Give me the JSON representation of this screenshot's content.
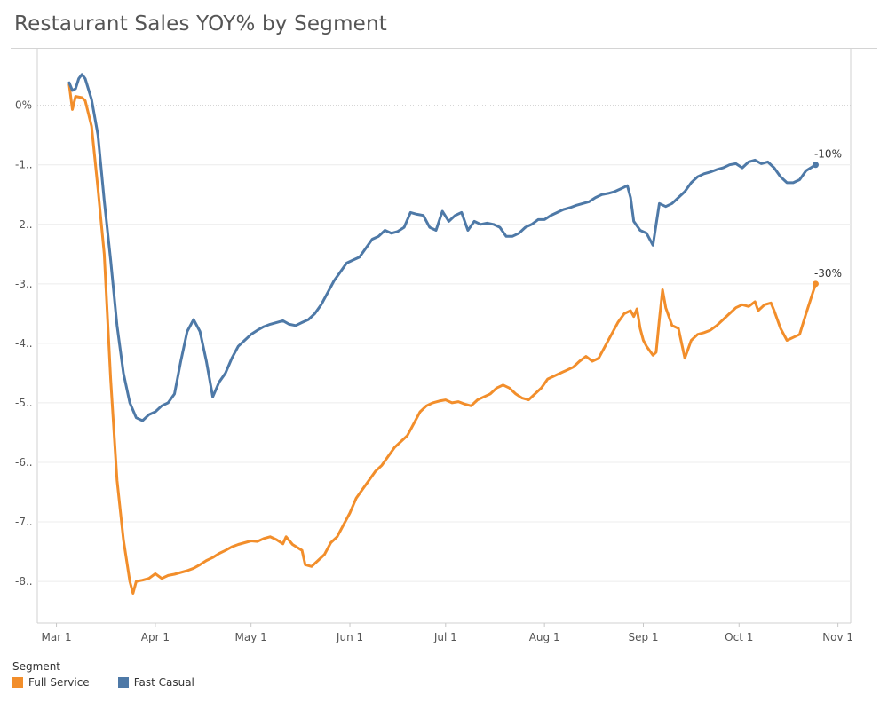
{
  "title": "Restaurant Sales YOY% by Segment",
  "legend": {
    "title": "Segment",
    "items": [
      {
        "label": "Full Service",
        "color": "#f28e2b"
      },
      {
        "label": "Fast Casual",
        "color": "#4e79a7"
      }
    ]
  },
  "chart_data": {
    "type": "line",
    "title": "Restaurant Sales YOY% by Segment",
    "xlabel": "",
    "ylabel": "",
    "x_unit": "date (2020)",
    "xlim": [
      "2020-02-24",
      "2020-11-05"
    ],
    "ylim": [
      -8.7,
      0.95
    ],
    "x_ticks": [
      {
        "date": "2020-03-01",
        "label": "Mar 1"
      },
      {
        "date": "2020-04-01",
        "label": "Apr 1"
      },
      {
        "date": "2020-05-01",
        "label": "May 1"
      },
      {
        "date": "2020-06-01",
        "label": "Jun 1"
      },
      {
        "date": "2020-07-01",
        "label": "Jul 1"
      },
      {
        "date": "2020-08-01",
        "label": "Aug 1"
      },
      {
        "date": "2020-09-01",
        "label": "Sep 1"
      },
      {
        "date": "2020-10-01",
        "label": "Oct 1"
      },
      {
        "date": "2020-11-01",
        "label": "Nov 1"
      }
    ],
    "y_ticks": [
      {
        "value": 0,
        "label": "0%"
      },
      {
        "value": -1,
        "label": "-1.."
      },
      {
        "value": -2,
        "label": "-2.."
      },
      {
        "value": -3,
        "label": "-3.."
      },
      {
        "value": -4,
        "label": "-4.."
      },
      {
        "value": -5,
        "label": "-5.."
      },
      {
        "value": -6,
        "label": "-6.."
      },
      {
        "value": -7,
        "label": "-7.."
      },
      {
        "value": -8,
        "label": "-8.."
      }
    ],
    "grid": true,
    "legend_position": "bottom-left",
    "series": [
      {
        "name": "Full Service",
        "color": "#f28e2b",
        "end_label": "-30%",
        "points": [
          [
            "2020-03-05",
            0.35
          ],
          [
            "2020-03-06",
            -0.07
          ],
          [
            "2020-03-07",
            0.15
          ],
          [
            "2020-03-09",
            0.13
          ],
          [
            "2020-03-10",
            0.08
          ],
          [
            "2020-03-12",
            -0.35
          ],
          [
            "2020-03-14",
            -1.4
          ],
          [
            "2020-03-16",
            -2.5
          ],
          [
            "2020-03-18",
            -4.6
          ],
          [
            "2020-03-20",
            -6.3
          ],
          [
            "2020-03-22",
            -7.3
          ],
          [
            "2020-03-24",
            -8.0
          ],
          [
            "2020-03-25",
            -8.2
          ],
          [
            "2020-03-26",
            -8.0
          ],
          [
            "2020-03-28",
            -7.98
          ],
          [
            "2020-03-30",
            -7.95
          ],
          [
            "2020-04-01",
            -7.87
          ],
          [
            "2020-04-03",
            -7.95
          ],
          [
            "2020-04-05",
            -7.9
          ],
          [
            "2020-04-07",
            -7.88
          ],
          [
            "2020-04-09",
            -7.85
          ],
          [
            "2020-04-11",
            -7.82
          ],
          [
            "2020-04-13",
            -7.78
          ],
          [
            "2020-04-15",
            -7.72
          ],
          [
            "2020-04-17",
            -7.65
          ],
          [
            "2020-04-19",
            -7.6
          ],
          [
            "2020-04-21",
            -7.53
          ],
          [
            "2020-04-23",
            -7.48
          ],
          [
            "2020-04-25",
            -7.42
          ],
          [
            "2020-04-27",
            -7.38
          ],
          [
            "2020-04-29",
            -7.35
          ],
          [
            "2020-05-01",
            -7.32
          ],
          [
            "2020-05-03",
            -7.33
          ],
          [
            "2020-05-05",
            -7.28
          ],
          [
            "2020-05-07",
            -7.25
          ],
          [
            "2020-05-09",
            -7.3
          ],
          [
            "2020-05-11",
            -7.37
          ],
          [
            "2020-05-12",
            -7.25
          ],
          [
            "2020-05-14",
            -7.38
          ],
          [
            "2020-05-17",
            -7.48
          ],
          [
            "2020-05-18",
            -7.72
          ],
          [
            "2020-05-20",
            -7.75
          ],
          [
            "2020-05-22",
            -7.65
          ],
          [
            "2020-05-24",
            -7.55
          ],
          [
            "2020-05-26",
            -7.35
          ],
          [
            "2020-05-28",
            -7.25
          ],
          [
            "2020-05-30",
            -7.05
          ],
          [
            "2020-06-01",
            -6.85
          ],
          [
            "2020-06-03",
            -6.6
          ],
          [
            "2020-06-05",
            -6.45
          ],
          [
            "2020-06-07",
            -6.3
          ],
          [
            "2020-06-09",
            -6.15
          ],
          [
            "2020-06-11",
            -6.05
          ],
          [
            "2020-06-13",
            -5.9
          ],
          [
            "2020-06-15",
            -5.75
          ],
          [
            "2020-06-17",
            -5.65
          ],
          [
            "2020-06-19",
            -5.55
          ],
          [
            "2020-06-21",
            -5.35
          ],
          [
            "2020-06-23",
            -5.15
          ],
          [
            "2020-06-25",
            -5.05
          ],
          [
            "2020-06-27",
            -5.0
          ],
          [
            "2020-06-29",
            -4.97
          ],
          [
            "2020-07-01",
            -4.95
          ],
          [
            "2020-07-03",
            -5.0
          ],
          [
            "2020-07-05",
            -4.98
          ],
          [
            "2020-07-07",
            -5.02
          ],
          [
            "2020-07-09",
            -5.05
          ],
          [
            "2020-07-11",
            -4.95
          ],
          [
            "2020-07-13",
            -4.9
          ],
          [
            "2020-07-15",
            -4.85
          ],
          [
            "2020-07-17",
            -4.75
          ],
          [
            "2020-07-19",
            -4.7
          ],
          [
            "2020-07-21",
            -4.75
          ],
          [
            "2020-07-23",
            -4.85
          ],
          [
            "2020-07-25",
            -4.92
          ],
          [
            "2020-07-27",
            -4.95
          ],
          [
            "2020-07-29",
            -4.85
          ],
          [
            "2020-07-31",
            -4.75
          ],
          [
            "2020-08-02",
            -4.6
          ],
          [
            "2020-08-04",
            -4.55
          ],
          [
            "2020-08-06",
            -4.5
          ],
          [
            "2020-08-08",
            -4.45
          ],
          [
            "2020-08-10",
            -4.4
          ],
          [
            "2020-08-12",
            -4.3
          ],
          [
            "2020-08-14",
            -4.22
          ],
          [
            "2020-08-16",
            -4.3
          ],
          [
            "2020-08-18",
            -4.25
          ],
          [
            "2020-08-20",
            -4.05
          ],
          [
            "2020-08-22",
            -3.85
          ],
          [
            "2020-08-24",
            -3.65
          ],
          [
            "2020-08-26",
            -3.5
          ],
          [
            "2020-08-28",
            -3.45
          ],
          [
            "2020-08-29",
            -3.55
          ],
          [
            "2020-08-30",
            -3.42
          ],
          [
            "2020-08-31",
            -3.75
          ],
          [
            "2020-09-01",
            -3.95
          ],
          [
            "2020-09-02",
            -4.05
          ],
          [
            "2020-09-04",
            -4.2
          ],
          [
            "2020-09-05",
            -4.15
          ],
          [
            "2020-09-06",
            -3.6
          ],
          [
            "2020-09-07",
            -3.1
          ],
          [
            "2020-09-08",
            -3.4
          ],
          [
            "2020-09-10",
            -3.7
          ],
          [
            "2020-09-12",
            -3.75
          ],
          [
            "2020-09-14",
            -4.25
          ],
          [
            "2020-09-16",
            -3.95
          ],
          [
            "2020-09-18",
            -3.85
          ],
          [
            "2020-09-20",
            -3.82
          ],
          [
            "2020-09-22",
            -3.78
          ],
          [
            "2020-09-24",
            -3.7
          ],
          [
            "2020-09-26",
            -3.6
          ],
          [
            "2020-09-28",
            -3.5
          ],
          [
            "2020-09-30",
            -3.4
          ],
          [
            "2020-10-02",
            -3.35
          ],
          [
            "2020-10-04",
            -3.38
          ],
          [
            "2020-10-06",
            -3.3
          ],
          [
            "2020-10-07",
            -3.45
          ],
          [
            "2020-10-09",
            -3.35
          ],
          [
            "2020-10-11",
            -3.32
          ],
          [
            "2020-10-12",
            -3.45
          ],
          [
            "2020-10-14",
            -3.75
          ],
          [
            "2020-10-16",
            -3.95
          ],
          [
            "2020-10-18",
            -3.9
          ],
          [
            "2020-10-20",
            -3.85
          ],
          [
            "2020-10-22",
            -3.5
          ],
          [
            "2020-10-25",
            -3.0
          ]
        ]
      },
      {
        "name": "Fast Casual",
        "color": "#4e79a7",
        "end_label": "-10%",
        "points": [
          [
            "2020-03-05",
            0.38
          ],
          [
            "2020-03-06",
            0.25
          ],
          [
            "2020-03-07",
            0.28
          ],
          [
            "2020-03-08",
            0.45
          ],
          [
            "2020-03-09",
            0.52
          ],
          [
            "2020-03-10",
            0.45
          ],
          [
            "2020-03-12",
            0.1
          ],
          [
            "2020-03-14",
            -0.5
          ],
          [
            "2020-03-16",
            -1.6
          ],
          [
            "2020-03-18",
            -2.6
          ],
          [
            "2020-03-20",
            -3.7
          ],
          [
            "2020-03-22",
            -4.5
          ],
          [
            "2020-03-24",
            -5.0
          ],
          [
            "2020-03-26",
            -5.25
          ],
          [
            "2020-03-28",
            -5.3
          ],
          [
            "2020-03-30",
            -5.2
          ],
          [
            "2020-04-01",
            -5.15
          ],
          [
            "2020-04-03",
            -5.05
          ],
          [
            "2020-04-05",
            -5.0
          ],
          [
            "2020-04-07",
            -4.85
          ],
          [
            "2020-04-09",
            -4.3
          ],
          [
            "2020-04-11",
            -3.8
          ],
          [
            "2020-04-13",
            -3.6
          ],
          [
            "2020-04-15",
            -3.8
          ],
          [
            "2020-04-17",
            -4.3
          ],
          [
            "2020-04-19",
            -4.9
          ],
          [
            "2020-04-21",
            -4.65
          ],
          [
            "2020-04-23",
            -4.5
          ],
          [
            "2020-04-25",
            -4.25
          ],
          [
            "2020-04-27",
            -4.05
          ],
          [
            "2020-04-29",
            -3.95
          ],
          [
            "2020-05-01",
            -3.85
          ],
          [
            "2020-05-03",
            -3.78
          ],
          [
            "2020-05-05",
            -3.72
          ],
          [
            "2020-05-07",
            -3.68
          ],
          [
            "2020-05-09",
            -3.65
          ],
          [
            "2020-05-11",
            -3.62
          ],
          [
            "2020-05-13",
            -3.68
          ],
          [
            "2020-05-15",
            -3.7
          ],
          [
            "2020-05-17",
            -3.65
          ],
          [
            "2020-05-19",
            -3.6
          ],
          [
            "2020-05-21",
            -3.5
          ],
          [
            "2020-05-23",
            -3.35
          ],
          [
            "2020-05-25",
            -3.15
          ],
          [
            "2020-05-27",
            -2.95
          ],
          [
            "2020-05-29",
            -2.8
          ],
          [
            "2020-05-31",
            -2.65
          ],
          [
            "2020-06-02",
            -2.6
          ],
          [
            "2020-06-04",
            -2.55
          ],
          [
            "2020-06-06",
            -2.4
          ],
          [
            "2020-06-08",
            -2.25
          ],
          [
            "2020-06-10",
            -2.2
          ],
          [
            "2020-06-12",
            -2.1
          ],
          [
            "2020-06-14",
            -2.15
          ],
          [
            "2020-06-16",
            -2.12
          ],
          [
            "2020-06-18",
            -2.05
          ],
          [
            "2020-06-20",
            -1.8
          ],
          [
            "2020-06-22",
            -1.83
          ],
          [
            "2020-06-24",
            -1.85
          ],
          [
            "2020-06-26",
            -2.05
          ],
          [
            "2020-06-28",
            -2.1
          ],
          [
            "2020-06-30",
            -1.78
          ],
          [
            "2020-07-02",
            -1.95
          ],
          [
            "2020-07-04",
            -1.85
          ],
          [
            "2020-07-06",
            -1.8
          ],
          [
            "2020-07-08",
            -2.1
          ],
          [
            "2020-07-10",
            -1.95
          ],
          [
            "2020-07-12",
            -2.0
          ],
          [
            "2020-07-14",
            -1.98
          ],
          [
            "2020-07-16",
            -2.0
          ],
          [
            "2020-07-18",
            -2.05
          ],
          [
            "2020-07-20",
            -2.2
          ],
          [
            "2020-07-22",
            -2.2
          ],
          [
            "2020-07-24",
            -2.15
          ],
          [
            "2020-07-26",
            -2.05
          ],
          [
            "2020-07-28",
            -2.0
          ],
          [
            "2020-07-30",
            -1.92
          ],
          [
            "2020-08-01",
            -1.92
          ],
          [
            "2020-08-03",
            -1.85
          ],
          [
            "2020-08-05",
            -1.8
          ],
          [
            "2020-08-07",
            -1.75
          ],
          [
            "2020-08-09",
            -1.72
          ],
          [
            "2020-08-11",
            -1.68
          ],
          [
            "2020-08-13",
            -1.65
          ],
          [
            "2020-08-15",
            -1.62
          ],
          [
            "2020-08-17",
            -1.55
          ],
          [
            "2020-08-19",
            -1.5
          ],
          [
            "2020-08-21",
            -1.48
          ],
          [
            "2020-08-23",
            -1.45
          ],
          [
            "2020-08-25",
            -1.4
          ],
          [
            "2020-08-27",
            -1.35
          ],
          [
            "2020-08-28",
            -1.55
          ],
          [
            "2020-08-29",
            -1.95
          ],
          [
            "2020-08-31",
            -2.1
          ],
          [
            "2020-09-02",
            -2.15
          ],
          [
            "2020-09-04",
            -2.35
          ],
          [
            "2020-09-06",
            -1.65
          ],
          [
            "2020-09-08",
            -1.7
          ],
          [
            "2020-09-10",
            -1.65
          ],
          [
            "2020-09-12",
            -1.55
          ],
          [
            "2020-09-14",
            -1.45
          ],
          [
            "2020-09-16",
            -1.3
          ],
          [
            "2020-09-18",
            -1.2
          ],
          [
            "2020-09-20",
            -1.15
          ],
          [
            "2020-09-22",
            -1.12
          ],
          [
            "2020-09-24",
            -1.08
          ],
          [
            "2020-09-26",
            -1.05
          ],
          [
            "2020-09-28",
            -1.0
          ],
          [
            "2020-09-30",
            -0.98
          ],
          [
            "2020-10-02",
            -1.05
          ],
          [
            "2020-10-04",
            -0.95
          ],
          [
            "2020-10-06",
            -0.92
          ],
          [
            "2020-10-08",
            -0.98
          ],
          [
            "2020-10-10",
            -0.95
          ],
          [
            "2020-10-12",
            -1.05
          ],
          [
            "2020-10-14",
            -1.2
          ],
          [
            "2020-10-16",
            -1.3
          ],
          [
            "2020-10-18",
            -1.3
          ],
          [
            "2020-10-20",
            -1.25
          ],
          [
            "2020-10-22",
            -1.1
          ],
          [
            "2020-10-25",
            -1.0
          ]
        ]
      }
    ]
  }
}
